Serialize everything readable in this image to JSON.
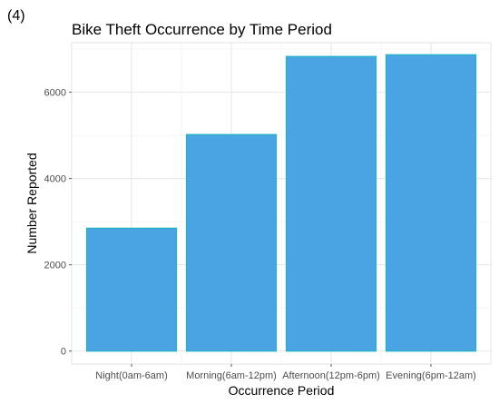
{
  "panel_tag": "(4)",
  "chart_data": {
    "type": "bar",
    "title": "Bike Theft Occurrence by Time Period",
    "xlabel": "Occurrence Period",
    "ylabel": "Number Reported",
    "categories": [
      "Night(0am-6am)",
      "Morning(6am-12pm)",
      "Afternoon(12pm-6pm)",
      "Evening(6pm-12am)"
    ],
    "values": [
      2850,
      5020,
      6830,
      6870
    ],
    "ylim": [
      -300,
      7150
    ],
    "yticks": [
      0,
      2000,
      4000,
      6000
    ],
    "ytick_labels": [
      "0",
      "2000",
      "4000",
      "6000"
    ],
    "grid": true,
    "bar_fill": "#4aa3e2",
    "bar_stroke": "#1fb3c4"
  }
}
